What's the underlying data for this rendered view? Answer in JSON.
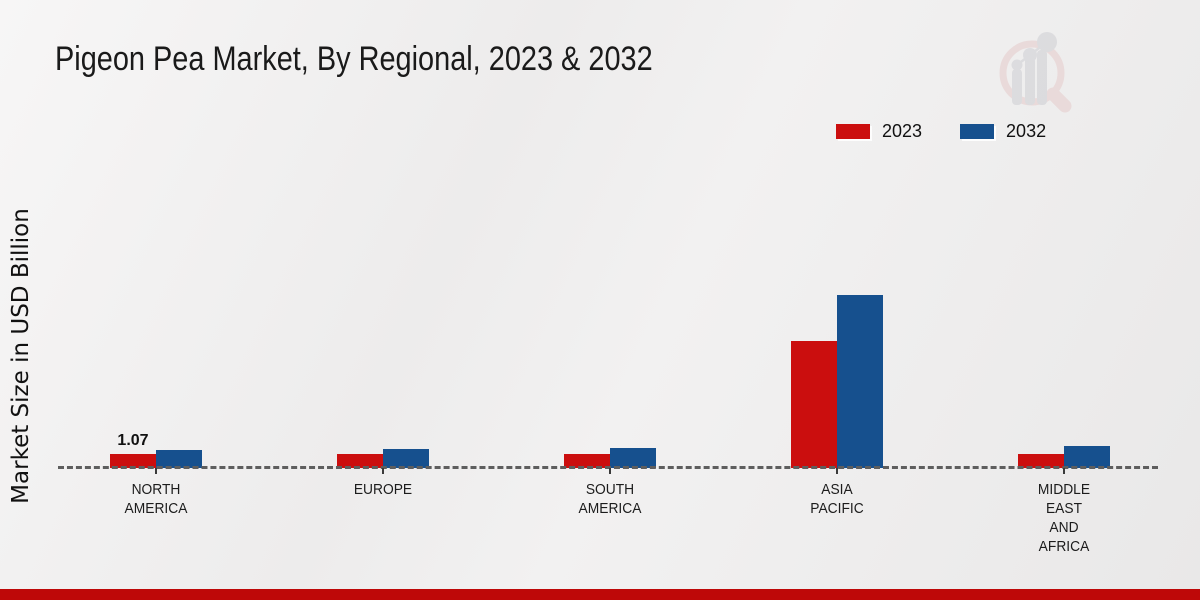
{
  "chart_data": {
    "type": "bar",
    "title": "Pigeon Pea Market, By Regional, 2023 & 2032",
    "xlabel": "",
    "ylabel": "Market Size in USD Billion",
    "ylim": [
      0,
      14
    ],
    "grid": false,
    "legend_position": "top-right",
    "baseline_style": "dashed",
    "categories": [
      "NORTH\nAMERICA",
      "EUROPE",
      "SOUTH\nAMERICA",
      "ASIA\nPACIFIC",
      "MIDDLE\nEAST\nAND\nAFRICA"
    ],
    "series": [
      {
        "name": "2023",
        "color": "#cb0e0e",
        "values": [
          1.07,
          1.05,
          1.08,
          9.7,
          1.1
        ],
        "labels": [
          "1.07",
          "",
          "",
          "",
          ""
        ]
      },
      {
        "name": "2032",
        "color": "#16508e",
        "values": [
          1.37,
          1.45,
          1.52,
          13.2,
          1.66
        ],
        "labels": [
          "",
          "",
          "",
          "",
          ""
        ]
      }
    ]
  },
  "colors": {
    "footer_bar": "#be0808",
    "axis_line": "#5e5e5e",
    "background": "#ededeb",
    "title_text": "#1a1a1a"
  },
  "watermark": {
    "name": "market-research-magnifier-logo",
    "ring_color": "#e5cbcb",
    "bars_color": "#cdced3"
  }
}
